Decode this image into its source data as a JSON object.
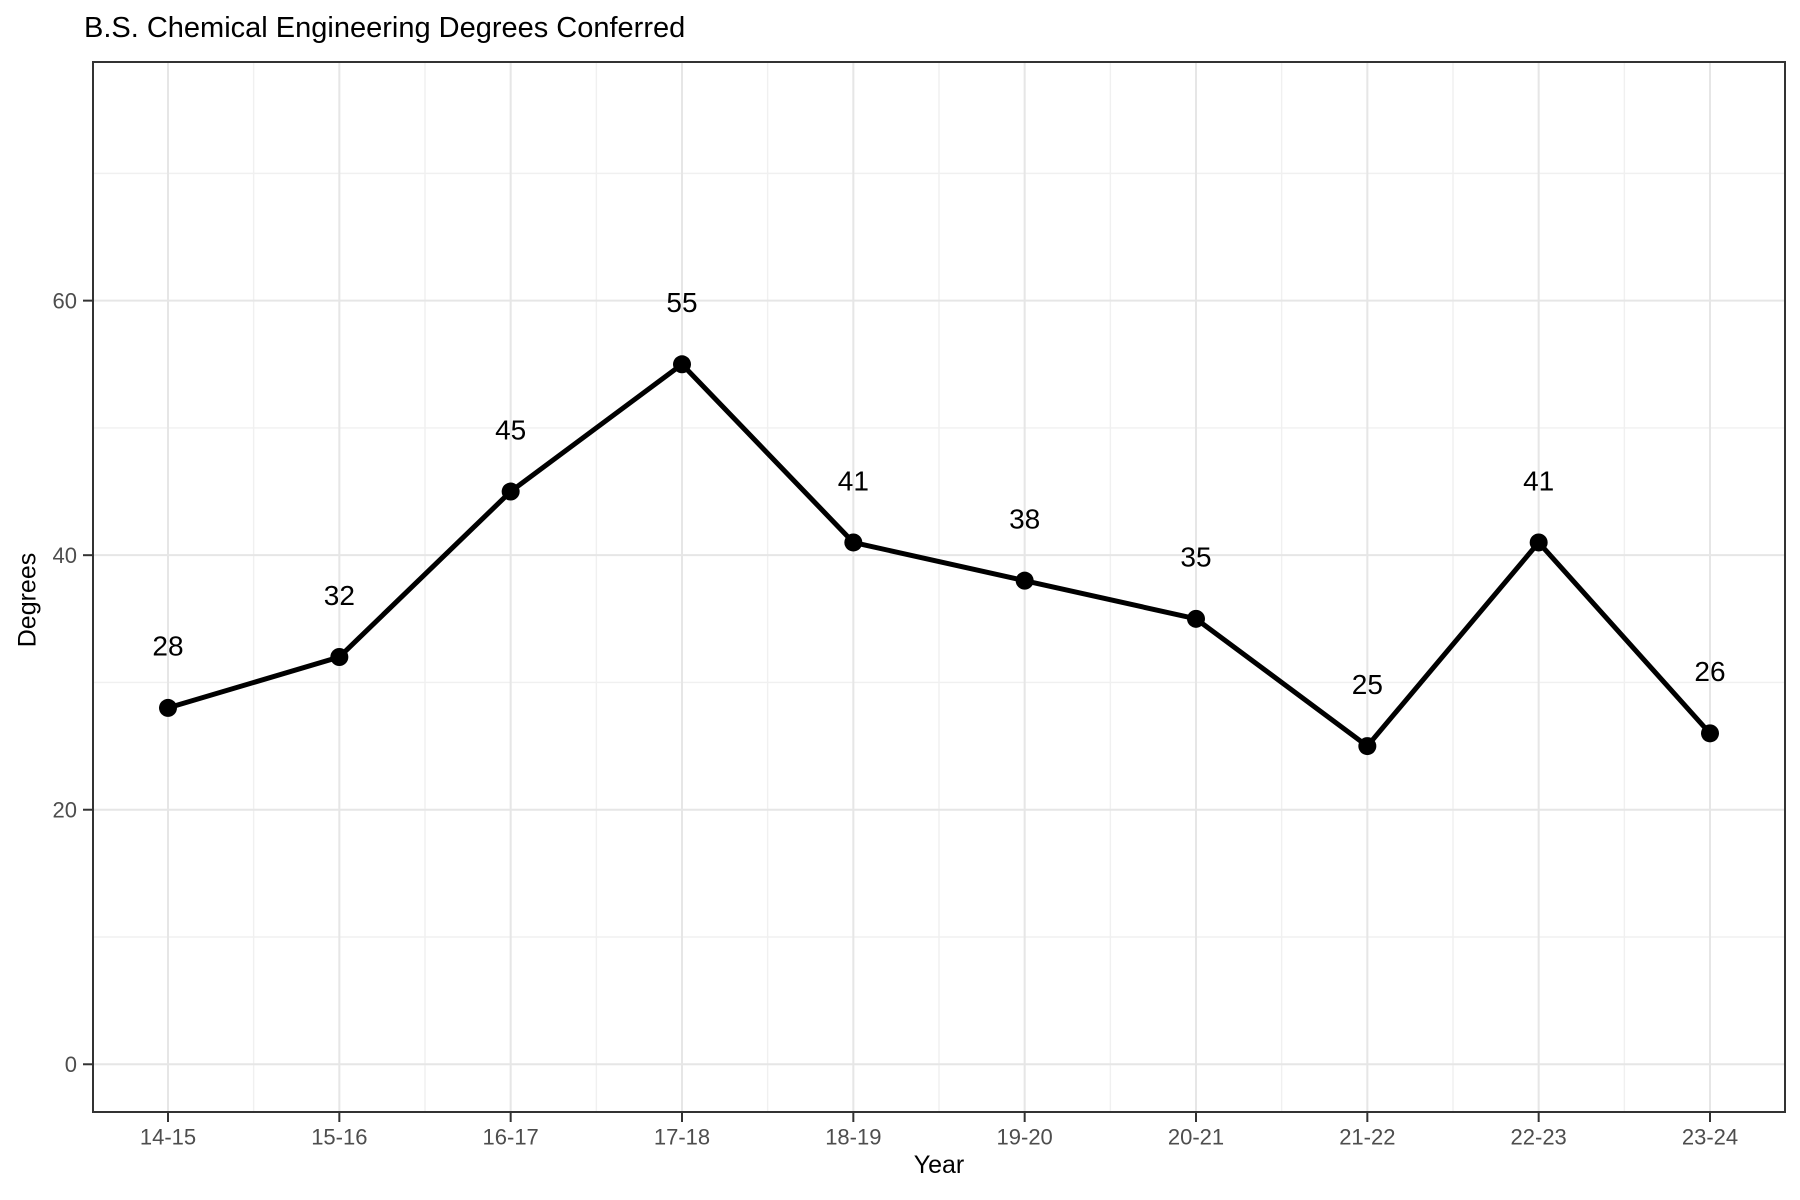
{
  "chart_data": {
    "type": "line",
    "title": "B.S. Chemical Engineering Degrees Conferred",
    "xlabel": "Year",
    "ylabel": "Degrees",
    "categories": [
      "14-15",
      "15-16",
      "16-17",
      "17-18",
      "18-19",
      "19-20",
      "20-21",
      "21-22",
      "22-23",
      "23-24"
    ],
    "values": [
      28,
      32,
      45,
      55,
      41,
      38,
      35,
      25,
      41,
      26
    ],
    "point_labels": [
      "28",
      "32",
      "45",
      "55",
      "41",
      "38",
      "35",
      "25",
      "41",
      "26"
    ],
    "y_tick_labels": [
      "0",
      "20",
      "40",
      "60"
    ],
    "y_ticks": [
      0,
      20,
      40,
      60
    ],
    "y_minor_gridlines": [
      10,
      30,
      50,
      70
    ],
    "ylim": [
      -3.75,
      78.75
    ],
    "grid": "major+minor",
    "legend": "none",
    "colors": {
      "line": "#000000",
      "point": "#000000",
      "data_label": "#000000",
      "grid_major": "#e6e6e6",
      "grid_minor": "#f0f0f0",
      "panel_border": "#333333",
      "tick_mark": "#333333",
      "tick_label": "#4d4d4d",
      "title": "#000000",
      "background": "#ffffff"
    }
  }
}
